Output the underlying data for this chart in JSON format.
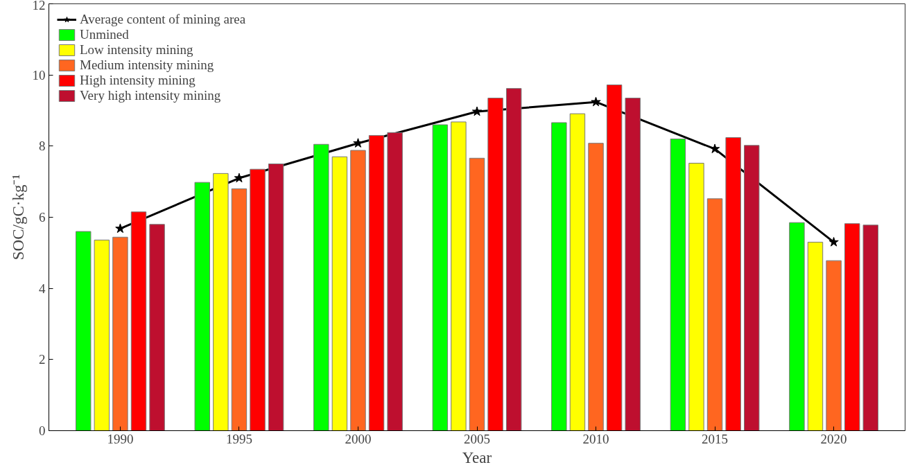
{
  "chart_data": {
    "type": "bar",
    "xlabel": "Year",
    "ylabel": "SOC/gC·kg⁻¹",
    "categories": [
      "1990",
      "1995",
      "2000",
      "2005",
      "2010",
      "2015",
      "2020"
    ],
    "series": [
      {
        "name": "Average content of mining area",
        "type": "line",
        "color": "#000000",
        "marker": "star",
        "values": [
          5.68,
          7.1,
          8.08,
          8.97,
          9.24,
          7.92,
          5.3
        ]
      },
      {
        "name": "Unmined",
        "color": "#00ff00",
        "values": [
          5.6,
          6.98,
          8.05,
          8.6,
          8.66,
          8.2,
          5.85
        ]
      },
      {
        "name": "Low intensity mining",
        "color": "#ffff00",
        "values": [
          5.36,
          7.23,
          7.7,
          8.68,
          8.91,
          7.52,
          5.3
        ]
      },
      {
        "name": "Medium intensity mining",
        "color": "#ff6620",
        "values": [
          5.44,
          6.8,
          7.88,
          7.66,
          8.08,
          6.52,
          4.78
        ]
      },
      {
        "name": "High intensity mining",
        "color": "#ff0000",
        "values": [
          6.15,
          7.35,
          8.3,
          9.35,
          9.72,
          8.24,
          5.82
        ]
      },
      {
        "name": "Very high intensity mining",
        "color": "#be0f2f",
        "values": [
          5.8,
          7.5,
          8.38,
          9.62,
          9.35,
          8.02,
          5.78
        ]
      }
    ],
    "ylim": [
      0,
      12
    ],
    "yticks": [
      0,
      2,
      4,
      6,
      8,
      10,
      12
    ],
    "grid": false,
    "legend": "top left"
  }
}
